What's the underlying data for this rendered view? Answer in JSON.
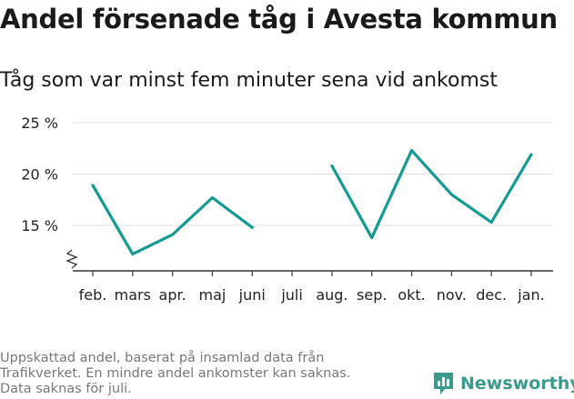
{
  "header": {
    "title": "Andel försenade tåg i Avesta kommun",
    "subtitle": "Tåg som var minst fem minuter sena vid ankomst"
  },
  "footnote": {
    "lines": [
      "Uppskattad andel, baserat på insamlad data från",
      "Trafikverket. En mindre andel ankomster kan saknas.",
      "Data saknas för juli."
    ]
  },
  "brand": {
    "name": "Newsworthy",
    "icon": "newsworthy-logo-icon"
  },
  "colors": {
    "line": "#139b91",
    "grid": "#dedede",
    "axis": "#333333",
    "brand": "#3a9a8c"
  },
  "chart_data": {
    "type": "line",
    "title": "Andel försenade tåg i Avesta kommun",
    "subtitle": "Tåg som var minst fem minuter sena vid ankomst",
    "xlabel": "",
    "ylabel": "",
    "categories": [
      "feb.",
      "mars",
      "apr.",
      "maj",
      "juni",
      "juli",
      "aug.",
      "sep.",
      "okt.",
      "nov.",
      "dec.",
      "jan."
    ],
    "series": [
      {
        "values": [
          18.9,
          12.2,
          14.1,
          17.7,
          14.8,
          null,
          20.8,
          13.8,
          22.3,
          18.0,
          15.3,
          21.9
        ]
      }
    ],
    "yticks": [
      15,
      20,
      25
    ],
    "ytick_labels": [
      "15 %",
      "20 %",
      "25 %"
    ],
    "ylim": [
      10.5,
      25
    ],
    "axis_break": true,
    "grid": true,
    "legend": "none"
  }
}
